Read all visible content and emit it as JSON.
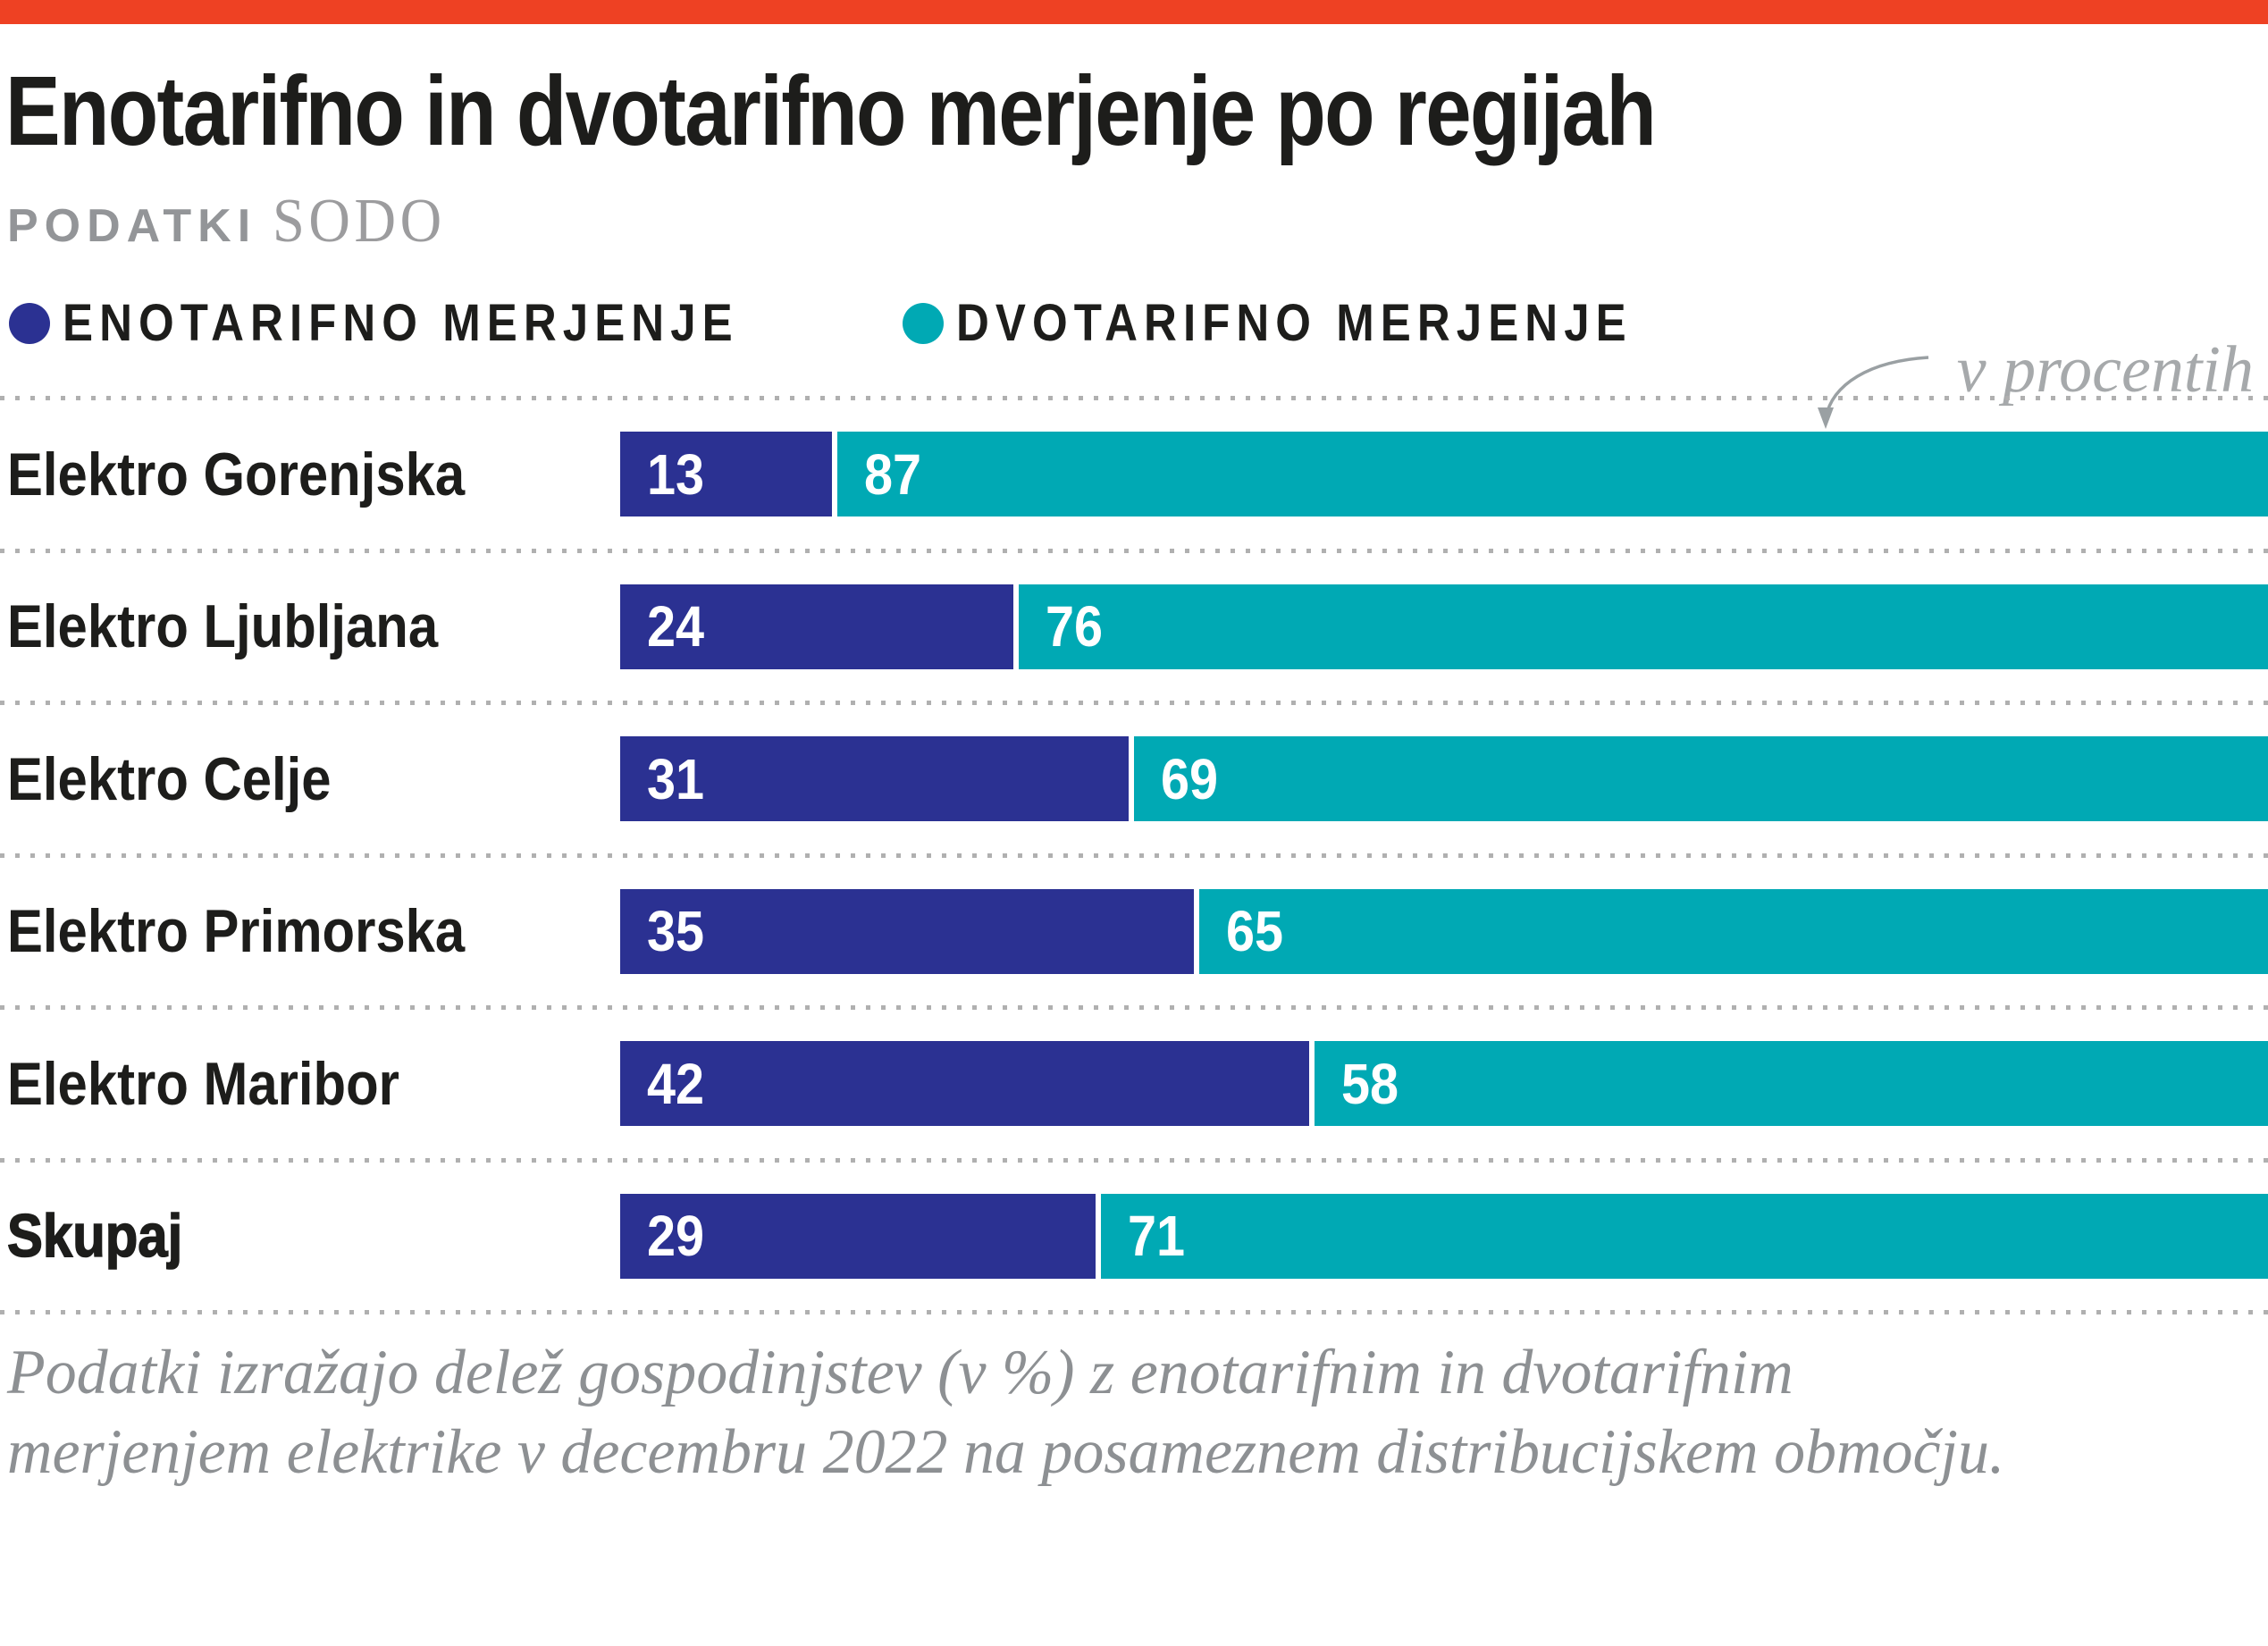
{
  "page": {
    "accent_bar_color": "#ee4123",
    "dotted_line_color": "#b0b0b0"
  },
  "header": {
    "title": "Enotarifno in dvotarifno merjenje po regijah",
    "source_label": "PODATKI",
    "source_name": "SODO"
  },
  "legend": [
    {
      "label": "ENOTARIFNO MERJENJE",
      "color": "#2b3192"
    },
    {
      "label": "DVOTARIFNO MERJENJE",
      "color": "#00a9b4"
    }
  ],
  "annotation": {
    "text": "v procentih"
  },
  "chart_data": {
    "type": "bar",
    "orientation": "horizontal",
    "stacked": true,
    "unit": "percent",
    "x_range": [
      0,
      100
    ],
    "grid": "dotted-row-separators",
    "legend_position": "top",
    "categories": [
      "Elektro Gorenjska",
      "Elektro Ljubljana",
      "Elektro Celje",
      "Elektro Primorska",
      "Elektro Maribor",
      "Skupaj"
    ],
    "series": [
      {
        "name": "ENOTARIFNO MERJENJE",
        "color": "#2b3192",
        "values": [
          13,
          24,
          31,
          35,
          42,
          29
        ]
      },
      {
        "name": "DVOTARIFNO MERJENJE",
        "color": "#00a9b4",
        "values": [
          87,
          76,
          69,
          65,
          58,
          71
        ]
      }
    ],
    "emphasized_category": "Skupaj"
  },
  "footnote": {
    "line1": "Podatki izražajo delež gospodinjstev (v %) z enotarifnim in dvotarifnim",
    "line2": "merjenjem elektrike v decembru 2022 na posameznem distribucijskem območju."
  }
}
